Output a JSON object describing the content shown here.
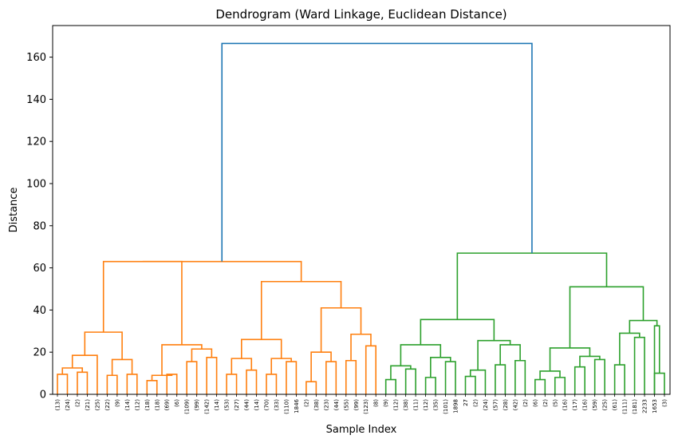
{
  "chart_data": {
    "type": "dendrogram",
    "title": "Dendrogram (Ward Linkage, Euclidean Distance)",
    "xlabel": "Sample Index",
    "ylabel": "Distance",
    "ylim": [
      0,
      175
    ],
    "yticks": [
      0,
      20,
      40,
      60,
      80,
      100,
      120,
      140,
      160
    ],
    "grid": false,
    "colors": {
      "cluster_1": "#ff7f0e",
      "cluster_2": "#2ca02c",
      "above_threshold": "#1f77b4"
    },
    "leaves": [
      "(13)",
      "(24)",
      "(2)",
      "(21)",
      "(25)",
      "(22)",
      "(9)",
      "(14)",
      "(12)",
      "(18)",
      "(18)",
      "(69)",
      "(6)",
      "(109)",
      "(99)",
      "(142)",
      "(14)",
      "(53)",
      "(27)",
      "(44)",
      "(14)",
      "(70)",
      "(33)",
      "(110)",
      "1846",
      "(2)",
      "(38)",
      "(23)",
      "(44)",
      "(55)",
      "(99)",
      "(123)",
      "(8)",
      "(9)",
      "(12)",
      "(38)",
      "(11)",
      "(12)",
      "(35)",
      "(101)",
      "1898",
      "27",
      "(2)",
      "(24)",
      "(57)",
      "(28)",
      "(42)",
      "(2)",
      "(6)",
      "(2)",
      "(5)",
      "(16)",
      "(17)",
      "(16)",
      "(59)",
      "(25)",
      "(61)",
      "(111)",
      "(181)",
      "2233",
      "1653",
      "(3)"
    ],
    "links": [
      {
        "a": 0,
        "b": 1,
        "h": 9.5,
        "c": "cluster_1"
      },
      {
        "a": 2,
        "b": 3,
        "h": 10.5,
        "c": "cluster_1"
      },
      {
        "a": 62,
        "b": 63,
        "h": 12.5,
        "c": "cluster_1"
      },
      {
        "a": 64,
        "b": 4,
        "h": 18.5,
        "c": "cluster_1"
      },
      {
        "a": 5,
        "b": 6,
        "h": 9.0,
        "c": "cluster_1"
      },
      {
        "a": 7,
        "b": 8,
        "h": 9.5,
        "c": "cluster_1"
      },
      {
        "a": 66,
        "b": 67,
        "h": 16.5,
        "c": "cluster_1"
      },
      {
        "a": 65,
        "b": 68,
        "h": 29.5,
        "c": "cluster_1"
      },
      {
        "a": 9,
        "b": 10,
        "h": 6.5,
        "c": "cluster_1"
      },
      {
        "a": 11,
        "b": 12,
        "h": 9.5,
        "c": "cluster_1"
      },
      {
        "a": 70,
        "b": 71,
        "h": 9.0,
        "c": "cluster_1"
      },
      {
        "a": 13,
        "b": 14,
        "h": 15.5,
        "c": "cluster_1"
      },
      {
        "a": 15,
        "b": 16,
        "h": 17.5,
        "c": "cluster_1"
      },
      {
        "a": 73,
        "b": 74,
        "h": 21.5,
        "c": "cluster_1"
      },
      {
        "a": 72,
        "b": 75,
        "h": 23.5,
        "c": "cluster_1"
      },
      {
        "a": 69,
        "b": 76,
        "h": 63.0,
        "c": "cluster_1"
      },
      {
        "a": 17,
        "b": 18,
        "h": 9.5,
        "c": "cluster_1"
      },
      {
        "a": 19,
        "b": 20,
        "h": 11.5,
        "c": "cluster_1"
      },
      {
        "a": 78,
        "b": 79,
        "h": 17.0,
        "c": "cluster_1"
      },
      {
        "a": 21,
        "b": 22,
        "h": 9.5,
        "c": "cluster_1"
      },
      {
        "a": 23,
        "b": 24,
        "h": 15.5,
        "c": "cluster_1"
      },
      {
        "a": 81,
        "b": 82,
        "h": 17.0,
        "c": "cluster_1"
      },
      {
        "a": 80,
        "b": 83,
        "h": 26.0,
        "c": "cluster_1"
      },
      {
        "a": 25,
        "b": 26,
        "h": 6.0,
        "c": "cluster_1"
      },
      {
        "a": 27,
        "b": 28,
        "h": 15.5,
        "c": "cluster_1"
      },
      {
        "a": 85,
        "b": 86,
        "h": 20.0,
        "c": "cluster_1"
      },
      {
        "a": 29,
        "b": 30,
        "h": 16.0,
        "c": "cluster_1"
      },
      {
        "a": 31,
        "b": 32,
        "h": 23.0,
        "c": "cluster_1"
      },
      {
        "a": 88,
        "b": 89,
        "h": 28.5,
        "c": "cluster_1"
      },
      {
        "a": 87,
        "b": 90,
        "h": 41.0,
        "c": "cluster_1"
      },
      {
        "a": 84,
        "b": 91,
        "h": 53.5,
        "c": "cluster_1"
      },
      {
        "a": 77,
        "b": 92,
        "h": 63.0,
        "c": "cluster_1"
      },
      {
        "a": 33,
        "b": 34,
        "h": 7.0,
        "c": "cluster_2"
      },
      {
        "a": 35,
        "b": 36,
        "h": 12.0,
        "c": "cluster_2"
      },
      {
        "a": 94,
        "b": 95,
        "h": 13.5,
        "c": "cluster_2"
      },
      {
        "a": 37,
        "b": 38,
        "h": 8.0,
        "c": "cluster_2"
      },
      {
        "a": 39,
        "b": 40,
        "h": 15.5,
        "c": "cluster_2"
      },
      {
        "a": 97,
        "b": 98,
        "h": 17.5,
        "c": "cluster_2"
      },
      {
        "a": 96,
        "b": 99,
        "h": 23.5,
        "c": "cluster_2"
      },
      {
        "a": 41,
        "b": 42,
        "h": 8.5,
        "c": "cluster_2"
      },
      {
        "a": 43,
        "b": 101,
        "h": 11.5,
        "c": "cluster_2"
      },
      {
        "a": 44,
        "b": 45,
        "h": 14.0,
        "c": "cluster_2"
      },
      {
        "a": 46,
        "b": 47,
        "h": 16.0,
        "c": "cluster_2"
      },
      {
        "a": 103,
        "b": 104,
        "h": 23.5,
        "c": "cluster_2"
      },
      {
        "a": 102,
        "b": 105,
        "h": 25.5,
        "c": "cluster_2"
      },
      {
        "a": 100,
        "b": 106,
        "h": 35.5,
        "c": "cluster_2"
      },
      {
        "a": 48,
        "b": 49,
        "h": 7.0,
        "c": "cluster_2"
      },
      {
        "a": 50,
        "b": 51,
        "h": 8.0,
        "c": "cluster_2"
      },
      {
        "a": 108,
        "b": 109,
        "h": 11.0,
        "c": "cluster_2"
      },
      {
        "a": 52,
        "b": 53,
        "h": 13.0,
        "c": "cluster_2"
      },
      {
        "a": 54,
        "b": 55,
        "h": 16.5,
        "c": "cluster_2"
      },
      {
        "a": 111,
        "b": 112,
        "h": 18.0,
        "c": "cluster_2"
      },
      {
        "a": 110,
        "b": 113,
        "h": 22.0,
        "c": "cluster_2"
      },
      {
        "a": 56,
        "b": 57,
        "h": 14.0,
        "c": "cluster_2"
      },
      {
        "a": 58,
        "b": 59,
        "h": 27.0,
        "c": "cluster_2"
      },
      {
        "a": 115,
        "b": 116,
        "h": 29.0,
        "c": "cluster_2"
      },
      {
        "a": 60,
        "b": 61,
        "h": 10.0,
        "c": "cluster_2"
      },
      {
        "a": 118,
        "b": 60,
        "h": 32.5,
        "c": "cluster_2"
      },
      {
        "a": 117,
        "b": 119,
        "h": 35.0,
        "c": "cluster_2"
      },
      {
        "a": 114,
        "b": 120,
        "h": 51.0,
        "c": "cluster_2"
      },
      {
        "a": 107,
        "b": 121,
        "h": 67.0,
        "c": "cluster_2"
      },
      {
        "a": 93,
        "b": 122,
        "h": 166.5,
        "c": "above_threshold"
      }
    ]
  }
}
